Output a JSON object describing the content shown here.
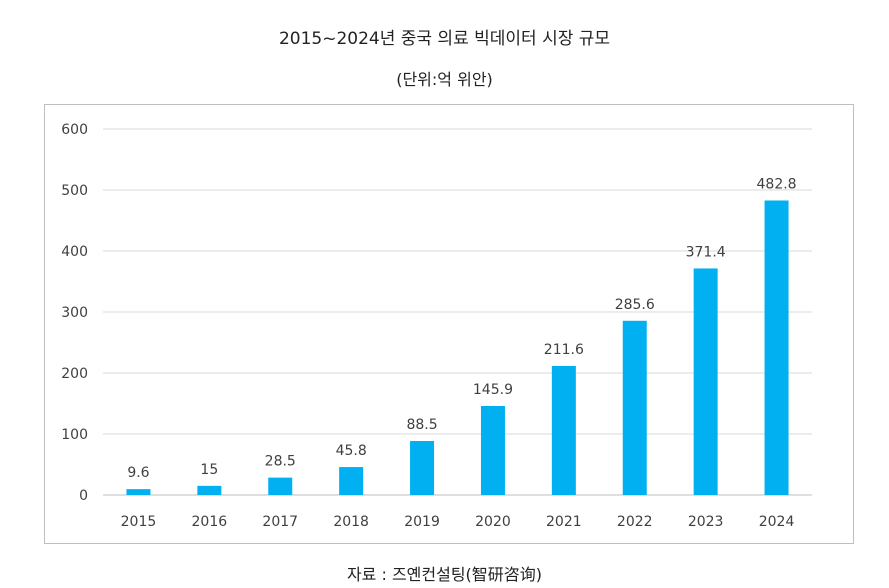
{
  "title": "2015~2024년 중국 의료 빅데이터 시장 규모",
  "subtitle": "(단위:억 위안)",
  "source": "자료 : 즈옌컨설팅(智研咨询)",
  "chart_data": {
    "type": "bar",
    "categories": [
      "2015",
      "2016",
      "2017",
      "2018",
      "2019",
      "2020",
      "2021",
      "2022",
      "2023",
      "2024"
    ],
    "values": [
      9.6,
      15,
      28.5,
      45.8,
      88.5,
      145.9,
      211.6,
      285.6,
      371.4,
      482.8
    ],
    "data_labels": [
      "9.6",
      "15",
      "28.5",
      "45.8",
      "88.5",
      "145.9",
      "211.6",
      "285.6",
      "371.4",
      "482.8"
    ],
    "yticks": [
      0,
      100,
      200,
      300,
      400,
      500,
      600
    ],
    "ylim": [
      0,
      600
    ],
    "grid": true,
    "bar_color": "#00B0F0",
    "grid_color": "#d9d9d9",
    "label_color": "#404040"
  }
}
